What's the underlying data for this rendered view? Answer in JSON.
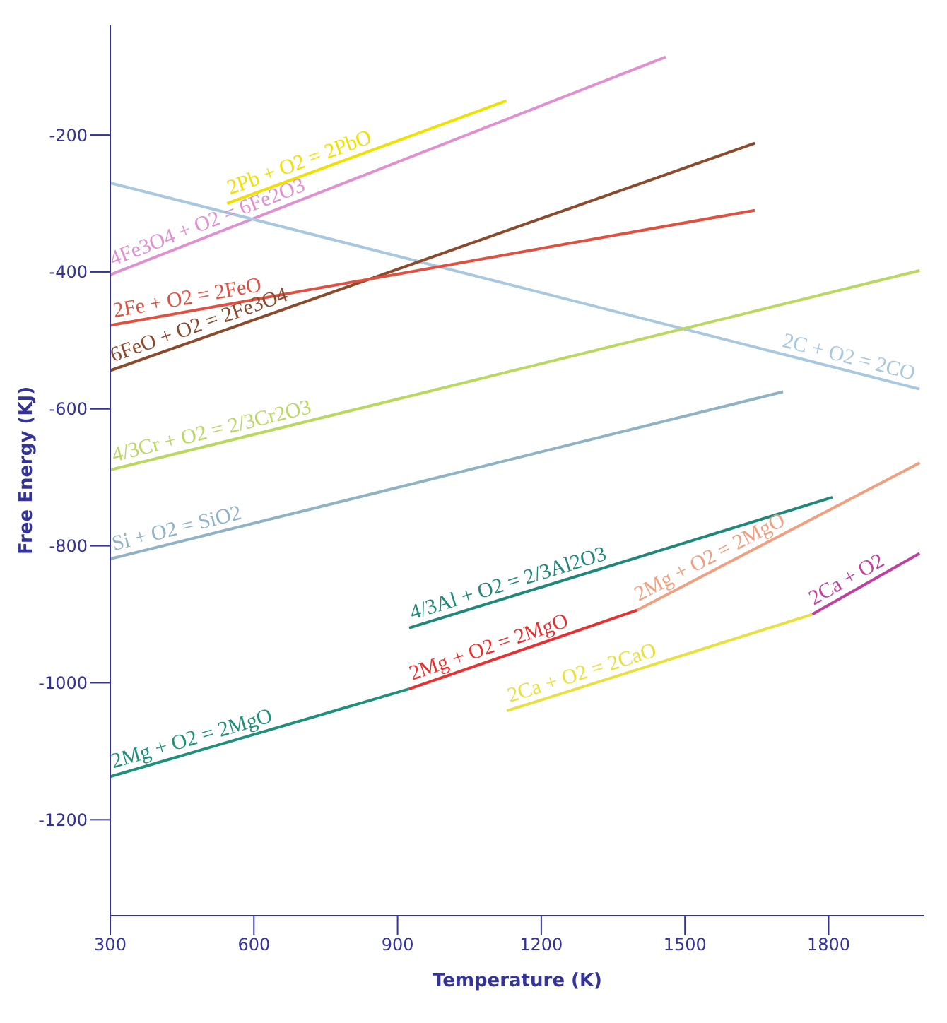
{
  "chart_data": {
    "type": "line",
    "xlabel": "Temperature (K)",
    "ylabel": "Free Energy (KJ)",
    "xlim": [
      300,
      2000
    ],
    "xticks": [
      300,
      600,
      900,
      1200,
      1500,
      1800
    ],
    "ylim": [
      -1340,
      -40
    ],
    "yticks": [
      -200,
      -400,
      -600,
      -800,
      -1000,
      -1200
    ],
    "grid": false,
    "legend": false,
    "marker": "none",
    "line_style": "solid",
    "series": [
      {
        "name": "2Pb + O2 = 2PbO",
        "color": "#f0e000",
        "x": [
          544,
          1127
        ],
        "values": [
          -300,
          -150
        ]
      },
      {
        "name": "4Fe3O4 + O2 = 6Fe2O3",
        "color": "#e090d0",
        "x": [
          300,
          1460
        ],
        "values": [
          -404,
          -86
        ]
      },
      {
        "name": "2C + O2 = 2CO",
        "color": "#a8c8e0",
        "x": [
          300,
          1990
        ],
        "values": [
          -270,
          -571
        ]
      },
      {
        "name": "6FeO + O2 = 2Fe3O4",
        "color": "#8b4a2b",
        "x": [
          300,
          1646
        ],
        "values": [
          -544,
          -212
        ]
      },
      {
        "name": "2Fe + O2 = 2FeO",
        "color": "#e05040",
        "x": [
          300,
          1646
        ],
        "values": [
          -478,
          -310
        ]
      },
      {
        "name": "4/3Cr + O2 = 2/3Cr2O3",
        "color": "#b8d860",
        "x": [
          300,
          1990
        ],
        "values": [
          -689,
          -398
        ]
      },
      {
        "name": "Si + O2 = SiO2",
        "color": "#8fb3c4",
        "x": [
          300,
          1705
        ],
        "values": [
          -819,
          -575
        ]
      },
      {
        "name": "4/3Al + O2 = 2/3Al2O3",
        "color": "#208878",
        "x": [
          924,
          1808
        ],
        "values": [
          -920,
          -729
        ]
      },
      {
        "name": "2Mg + O2 = 2MgO",
        "color": "#20907a",
        "x": [
          300,
          924
        ],
        "values": [
          -1137,
          -1009
        ]
      },
      {
        "name": "2Mg + O2 = 2MgO",
        "color": "#e83030",
        "x": [
          924,
          1400
        ],
        "values": [
          -1009,
          -894
        ]
      },
      {
        "name": "2Mg + O2 = 2MgO",
        "color": "#f0a080",
        "x": [
          1400,
          1990
        ],
        "values": [
          -894,
          -679
        ]
      },
      {
        "name": "2Ca + O2 = 2CaO",
        "color": "#e8e040",
        "x": [
          1128,
          1766
        ],
        "values": [
          -1041,
          -900
        ]
      },
      {
        "name": "2Ca + O2",
        "color": "#c040a0",
        "x": [
          1766,
          1990
        ],
        "values": [
          -900,
          -811
        ]
      }
    ]
  }
}
